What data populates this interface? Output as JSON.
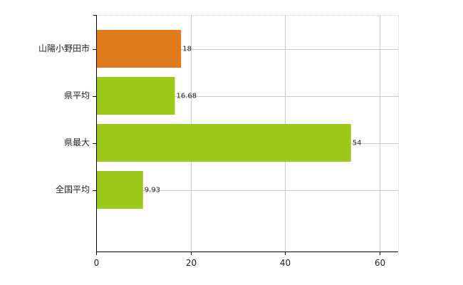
{
  "chart_data": {
    "type": "bar",
    "orientation": "horizontal",
    "categories": [
      "山陽小野田市",
      "県平均",
      "県最大",
      "全国平均"
    ],
    "values": [
      18,
      16.68,
      54,
      9.93
    ],
    "value_labels": [
      "18",
      "16.68",
      "54",
      "9.93"
    ],
    "bar_colors": [
      "#e07b1e",
      "#9dc81c",
      "#9dc81c",
      "#9dc81c"
    ],
    "xlim": [
      0,
      64
    ],
    "xticks": [
      0,
      20,
      40,
      60
    ],
    "xtick_labels": [
      "0",
      "20",
      "40",
      "60"
    ],
    "grid": true,
    "gridline_color": "#cccccc",
    "axis_color": "#000000",
    "title": "",
    "xlabel": "",
    "ylabel": ""
  }
}
